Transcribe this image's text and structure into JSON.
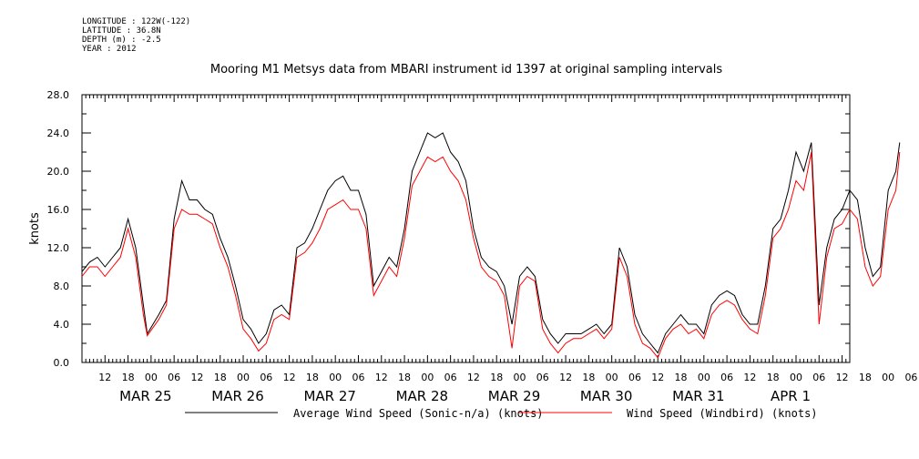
{
  "header": {
    "meta_lines": [
      "LONGITUDE : 122W(-122)",
      "LATITUDE : 36.8N",
      "DEPTH (m) : -2.5",
      "YEAR : 2012"
    ]
  },
  "chart_data": {
    "type": "line",
    "title": "Mooring M1 Metsys data from MBARI instrument id 1397 at original sampling intervals",
    "ylabel": "knots",
    "xlabel": "",
    "ylim": [
      0,
      28
    ],
    "yticks": [
      "0.0",
      "4.0",
      "8.0",
      "12.0",
      "16.0",
      "20.0",
      "24.0",
      "28.0"
    ],
    "xlim_hours": [
      0,
      200
    ],
    "hour_ticks": [
      "12",
      "18",
      "00",
      "06",
      "12",
      "18",
      "00",
      "06",
      "12",
      "18",
      "00",
      "06",
      "12",
      "18",
      "00",
      "06",
      "12",
      "18",
      "00",
      "06",
      "12",
      "18",
      "00",
      "06",
      "12",
      "18",
      "00",
      "06",
      "12",
      "18",
      "00",
      "06",
      "12",
      "18",
      "00",
      "06"
    ],
    "day_labels": [
      "MAR 25",
      "MAR 26",
      "MAR 27",
      "MAR 28",
      "MAR 29",
      "MAR 30",
      "MAR 31",
      "APR 1"
    ],
    "grid": false,
    "legend_position": "bottom",
    "series": [
      {
        "name": "Average Wind Speed (Sonic-n/a) (knots)",
        "color": "#000000",
        "points": [
          [
            0,
            9.5
          ],
          [
            2,
            10.5
          ],
          [
            4,
            11
          ],
          [
            6,
            10
          ],
          [
            8,
            11
          ],
          [
            10,
            12
          ],
          [
            12,
            15
          ],
          [
            14,
            12
          ],
          [
            16,
            6
          ],
          [
            17,
            3
          ],
          [
            20,
            5
          ],
          [
            22,
            6.5
          ],
          [
            24,
            15
          ],
          [
            26,
            19
          ],
          [
            28,
            17
          ],
          [
            30,
            17
          ],
          [
            32,
            16
          ],
          [
            34,
            15.5
          ],
          [
            36,
            13
          ],
          [
            38,
            11
          ],
          [
            40,
            8
          ],
          [
            42,
            4.5
          ],
          [
            44,
            3.5
          ],
          [
            46,
            2
          ],
          [
            48,
            3
          ],
          [
            50,
            5.5
          ],
          [
            52,
            6
          ],
          [
            54,
            5
          ],
          [
            56,
            12
          ],
          [
            58,
            12.5
          ],
          [
            60,
            14
          ],
          [
            62,
            16
          ],
          [
            64,
            18
          ],
          [
            66,
            19
          ],
          [
            68,
            19.5
          ],
          [
            70,
            18
          ],
          [
            72,
            18
          ],
          [
            74,
            15.5
          ],
          [
            76,
            8
          ],
          [
            78,
            9.5
          ],
          [
            80,
            11
          ],
          [
            82,
            10
          ],
          [
            84,
            14
          ],
          [
            86,
            20
          ],
          [
            88,
            22
          ],
          [
            90,
            24
          ],
          [
            92,
            23.5
          ],
          [
            94,
            24
          ],
          [
            96,
            22
          ],
          [
            98,
            21
          ],
          [
            100,
            19
          ],
          [
            102,
            14
          ],
          [
            104,
            11
          ],
          [
            106,
            10
          ],
          [
            108,
            9.5
          ],
          [
            110,
            8
          ],
          [
            112,
            4
          ],
          [
            114,
            9
          ],
          [
            116,
            10
          ],
          [
            118,
            9
          ],
          [
            120,
            4.5
          ],
          [
            122,
            3
          ],
          [
            124,
            2
          ],
          [
            126,
            3
          ],
          [
            128,
            3
          ],
          [
            130,
            3
          ],
          [
            132,
            3.5
          ],
          [
            134,
            4
          ],
          [
            136,
            3
          ],
          [
            138,
            4
          ],
          [
            140,
            12
          ],
          [
            142,
            10
          ],
          [
            144,
            5
          ],
          [
            146,
            3
          ],
          [
            148,
            2
          ],
          [
            150,
            1
          ],
          [
            152,
            3
          ],
          [
            154,
            4
          ],
          [
            156,
            5
          ],
          [
            158,
            4
          ],
          [
            160,
            4
          ],
          [
            162,
            3
          ],
          [
            164,
            6
          ],
          [
            166,
            7
          ],
          [
            168,
            7.5
          ],
          [
            170,
            7
          ],
          [
            172,
            5
          ],
          [
            174,
            4
          ],
          [
            176,
            4
          ],
          [
            178,
            8
          ],
          [
            180,
            14
          ],
          [
            182,
            15
          ],
          [
            184,
            18
          ],
          [
            186,
            22
          ],
          [
            188,
            20
          ],
          [
            190,
            23
          ],
          [
            192,
            6
          ],
          [
            194,
            12
          ],
          [
            196,
            15
          ],
          [
            198,
            16
          ],
          [
            200,
            18
          ],
          [
            202,
            17
          ],
          [
            204,
            12
          ],
          [
            206,
            9
          ],
          [
            208,
            10
          ],
          [
            210,
            18
          ],
          [
            212,
            20
          ],
          [
            213,
            23
          ]
        ]
      },
      {
        "name": "Wind Speed (Windbird) (knots)",
        "color": "#ff0000",
        "points": [
          [
            0,
            9
          ],
          [
            2,
            10
          ],
          [
            4,
            10
          ],
          [
            6,
            9
          ],
          [
            8,
            10
          ],
          [
            10,
            11
          ],
          [
            12,
            14
          ],
          [
            14,
            11
          ],
          [
            16,
            5
          ],
          [
            17,
            2.8
          ],
          [
            20,
            4.5
          ],
          [
            22,
            6
          ],
          [
            24,
            14
          ],
          [
            26,
            16
          ],
          [
            28,
            15.5
          ],
          [
            30,
            15.5
          ],
          [
            32,
            15
          ],
          [
            34,
            14.5
          ],
          [
            36,
            12
          ],
          [
            38,
            10
          ],
          [
            40,
            7
          ],
          [
            42,
            3.5
          ],
          [
            44,
            2.5
          ],
          [
            46,
            1.2
          ],
          [
            48,
            2
          ],
          [
            50,
            4.5
          ],
          [
            52,
            5
          ],
          [
            54,
            4.5
          ],
          [
            56,
            11
          ],
          [
            58,
            11.5
          ],
          [
            60,
            12.5
          ],
          [
            62,
            14
          ],
          [
            64,
            16
          ],
          [
            66,
            16.5
          ],
          [
            68,
            17
          ],
          [
            70,
            16
          ],
          [
            72,
            16
          ],
          [
            74,
            14
          ],
          [
            76,
            7
          ],
          [
            78,
            8.5
          ],
          [
            80,
            10
          ],
          [
            82,
            9
          ],
          [
            84,
            13
          ],
          [
            86,
            18.5
          ],
          [
            88,
            20
          ],
          [
            90,
            21.5
          ],
          [
            92,
            21
          ],
          [
            94,
            21.5
          ],
          [
            96,
            20
          ],
          [
            98,
            19
          ],
          [
            100,
            17
          ],
          [
            102,
            13
          ],
          [
            104,
            10
          ],
          [
            106,
            9
          ],
          [
            108,
            8.5
          ],
          [
            110,
            7
          ],
          [
            112,
            1.5
          ],
          [
            114,
            8
          ],
          [
            116,
            9
          ],
          [
            118,
            8.5
          ],
          [
            120,
            3.5
          ],
          [
            122,
            2
          ],
          [
            124,
            1
          ],
          [
            126,
            2
          ],
          [
            128,
            2.5
          ],
          [
            130,
            2.5
          ],
          [
            132,
            3
          ],
          [
            134,
            3.5
          ],
          [
            136,
            2.5
          ],
          [
            138,
            3.5
          ],
          [
            140,
            11
          ],
          [
            142,
            9
          ],
          [
            144,
            4
          ],
          [
            146,
            2
          ],
          [
            148,
            1.5
          ],
          [
            150,
            0.5
          ],
          [
            152,
            2.5
          ],
          [
            154,
            3.5
          ],
          [
            156,
            4
          ],
          [
            158,
            3
          ],
          [
            160,
            3.5
          ],
          [
            162,
            2.5
          ],
          [
            164,
            5
          ],
          [
            166,
            6
          ],
          [
            168,
            6.5
          ],
          [
            170,
            6
          ],
          [
            172,
            4.5
          ],
          [
            174,
            3.5
          ],
          [
            176,
            3
          ],
          [
            178,
            7
          ],
          [
            180,
            13
          ],
          [
            182,
            14
          ],
          [
            184,
            16
          ],
          [
            186,
            19
          ],
          [
            188,
            18
          ],
          [
            190,
            22
          ],
          [
            192,
            4
          ],
          [
            194,
            11
          ],
          [
            196,
            14
          ],
          [
            198,
            14.5
          ],
          [
            200,
            16
          ],
          [
            202,
            15
          ],
          [
            204,
            10
          ],
          [
            206,
            8
          ],
          [
            208,
            9
          ],
          [
            210,
            16
          ],
          [
            212,
            18
          ],
          [
            213,
            22
          ]
        ]
      }
    ]
  }
}
